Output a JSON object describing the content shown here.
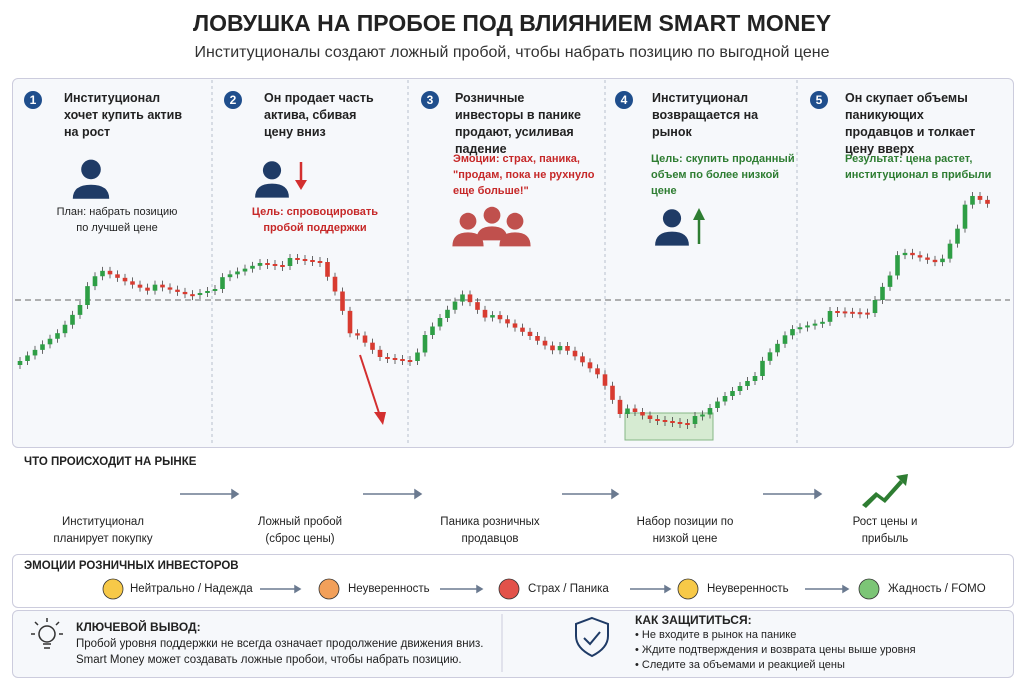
{
  "header": {
    "title": "ЛОВУШКА НА ПРОБОЕ ПОД ВЛИЯНИЕМ SMART MONEY",
    "subtitle": "Институционалы создают ложный пробой, чтобы набрать позицию по выгодной цене"
  },
  "steps": [
    {
      "number": "1",
      "text": "Институционал хочет купить актив на рост",
      "note": "План: набрать позицию по лучшей цене"
    },
    {
      "number": "2",
      "text": "Он продает часть актива, сбивая цену вниз",
      "note": "Цель: спровоцировать пробой поддержки"
    },
    {
      "number": "3",
      "text": "Розничные инвесторы в панике продают, усиливая падение",
      "note": "Эмоции: страх, паника, \"продам, пока не рухнуло еще больше!\""
    },
    {
      "number": "4",
      "text": "Институционал возвращается на рынок",
      "note": "Цель: скупить проданный объем по более низкой цене"
    },
    {
      "number": "5",
      "text": "Он скупает объемы паникующих продавцов и толкает цену вверх",
      "note": "Результат: цена растет, институционал в прибыли"
    }
  ],
  "market": {
    "title": "ЧТО ПРОИСХОДИТ НА РЫНКЕ",
    "items": [
      "Институционал планирует покупку",
      "Ложный пробой (сброс цены)",
      "Паника розничных продавцов",
      "Набор позиции по низкой цене",
      "Рост цены и прибыль"
    ]
  },
  "emotions": {
    "title": "ЭМОЦИИ РОЗНИЧНЫХ ИНВЕСТОРОВ",
    "items": [
      "Нейтрально / Надежда",
      "Неуверенность",
      "Страх / Паника",
      "Неуверенность",
      "Жадность / FOMO"
    ]
  },
  "takeaway": {
    "title": "КЛЮЧЕВОЙ ВЫВОД:",
    "lines": [
      "Пробой уровня поддержки не всегда означает продолжение движения вниз.",
      "Smart Money может создавать ложные пробои, чтобы набрать позицию."
    ]
  },
  "protect": {
    "title": "КАК ЗАЩИТИТЬСЯ:",
    "items": [
      "• Не входите в рынок на панике",
      "• Ждите подтверждения и возврата цены выше уровня",
      "• Следите за объемами и реакцией цены"
    ]
  }
}
